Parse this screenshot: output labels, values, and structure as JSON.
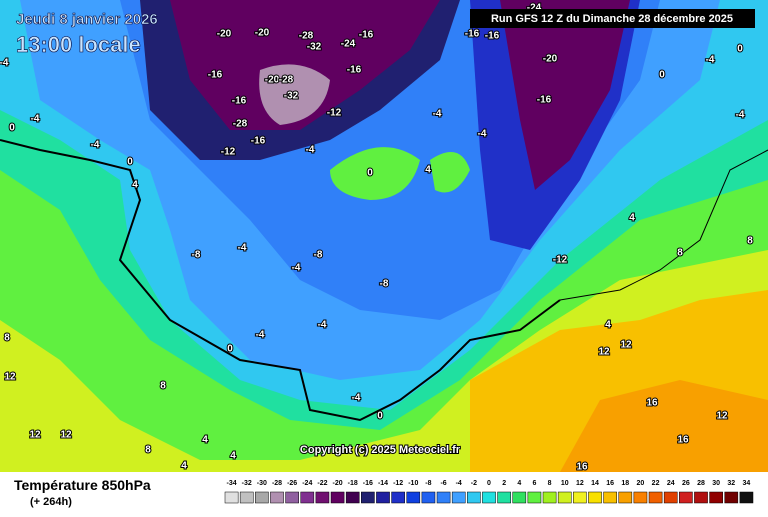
{
  "header": {
    "date": "Jeudi 8 janvier 2026",
    "time": "13:00 locale",
    "run": "Run GFS 12 Z du Dimanche 28 décembre 2025"
  },
  "map": {
    "labels": [
      "-20",
      "-20",
      "-16",
      "-28",
      "-32",
      "-24",
      "-16",
      "-20",
      "-28",
      "-16",
      "-16",
      "-32",
      "-28",
      "-12",
      "-12",
      "-16",
      "-20",
      "-16",
      "-24",
      "-16",
      "-16",
      "-4",
      "0",
      "-4",
      "-4",
      "0",
      "4",
      "0",
      "-4",
      "4",
      "-4",
      "-4",
      "-8",
      "-4",
      "-12",
      "-8",
      "-4",
      "-8",
      "-4",
      "-4",
      "0",
      "0",
      "-4",
      "4",
      "12",
      "12",
      "4",
      "8",
      "8",
      "16",
      "16",
      "12",
      "16",
      "12",
      "12",
      "12",
      "8",
      "4",
      "4",
      "8",
      "8",
      "4",
      "-4",
      "0",
      "0",
      "-4"
    ],
    "copyright": "Copyright (c) 2025 Meteociel.fr"
  },
  "footer": {
    "title": "Température 850hPa",
    "lead": "(+ 264h)"
  },
  "scale": {
    "labels": [
      -34,
      -32,
      -30,
      -28,
      -26,
      -24,
      -22,
      -20,
      -18,
      -16,
      -14,
      -12,
      -10,
      -8,
      -6,
      -4,
      -2,
      0,
      2,
      4,
      6,
      8,
      10,
      12,
      14,
      16,
      18,
      20,
      22,
      24,
      26,
      28,
      30,
      32,
      34
    ],
    "colors": [
      "#e0e0e0",
      "#c0c0c0",
      "#a8a8a8",
      "#b090b0",
      "#9060a0",
      "#803090",
      "#701070",
      "#600060",
      "#400050",
      "#202070",
      "#2020a0",
      "#2030c8",
      "#1040e0",
      "#2060f0",
      "#3080f8",
      "#40a0ff",
      "#30c8f0",
      "#20e0e0",
      "#20e0a0",
      "#30e060",
      "#60f040",
      "#a0f020",
      "#d0f020",
      "#f0f020",
      "#f8e000",
      "#f8c000",
      "#f8a000",
      "#f88000",
      "#f06000",
      "#e04000",
      "#d02020",
      "#b01010",
      "#900000",
      "#700000",
      "#101010"
    ]
  }
}
